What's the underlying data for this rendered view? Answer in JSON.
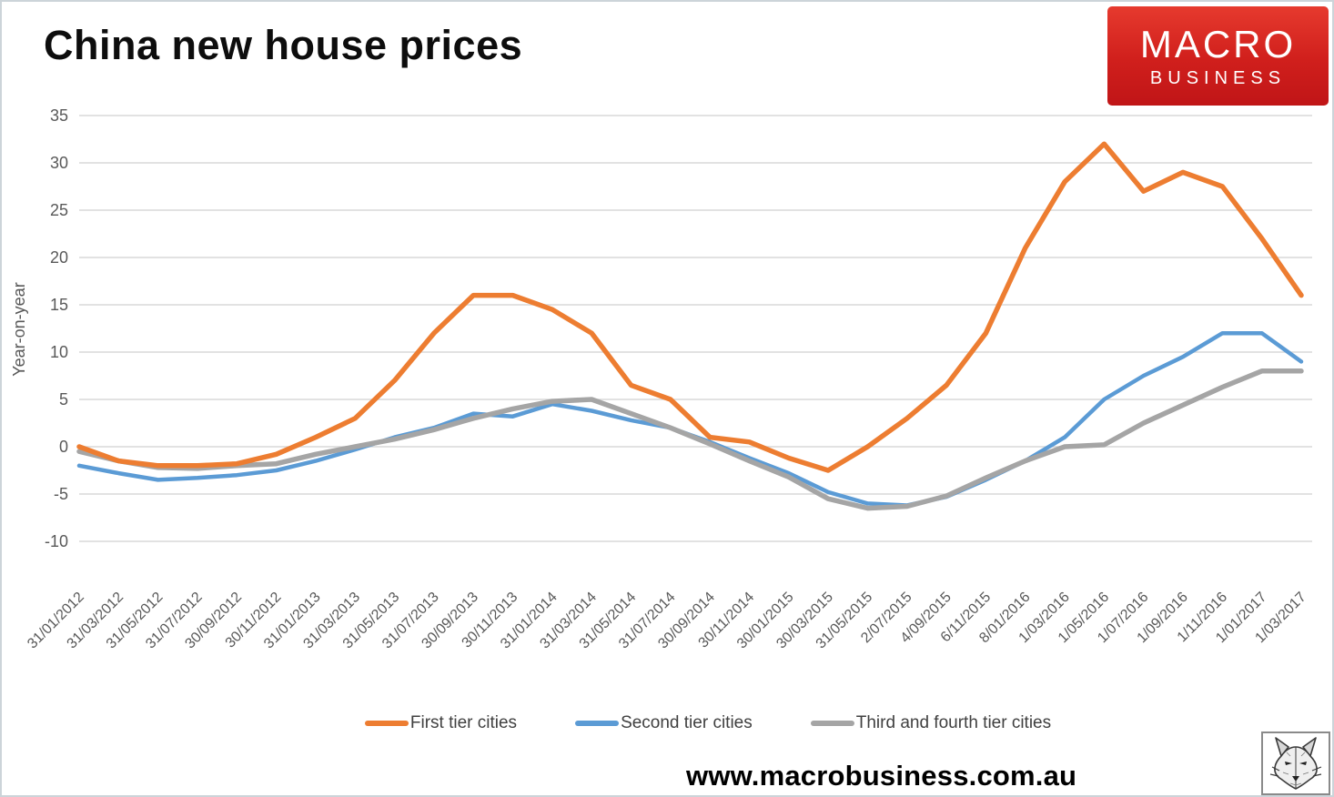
{
  "title": "China new house prices",
  "logo": {
    "line1": "MACRO",
    "line2": "BUSINESS",
    "background": "#d01f1c"
  },
  "watermark": "www.macrobusiness.com.au",
  "icons": {
    "wolf_logo": "wolf-head-logo"
  },
  "chart_data": {
    "type": "line",
    "title": "China new house prices",
    "xlabel": "",
    "ylabel": "Year-on-year",
    "ylim": [
      -10,
      35
    ],
    "ytick_step": 5,
    "grid": "horizontal",
    "legend_position": "bottom",
    "colors": {
      "grid": "#d9d9d9",
      "axis_text": "#595959"
    },
    "categories": [
      "31/01/2012",
      "31/03/2012",
      "31/05/2012",
      "31/07/2012",
      "30/09/2012",
      "30/11/2012",
      "31/01/2013",
      "31/03/2013",
      "31/05/2013",
      "31/07/2013",
      "30/09/2013",
      "30/11/2013",
      "31/01/2014",
      "31/03/2014",
      "31/05/2014",
      "31/07/2014",
      "30/09/2014",
      "30/11/2014",
      "30/01/2015",
      "30/03/2015",
      "31/05/2015",
      "2/07/2015",
      "4/09/2015",
      "6/11/2015",
      "8/01/2016",
      "1/03/2016",
      "1/05/2016",
      "1/07/2016",
      "1/09/2016",
      "1/11/2016",
      "1/01/2017",
      "1/03/2017"
    ],
    "series": [
      {
        "name": "First tier cities",
        "color": "#ED7D31",
        "values": [
          0,
          -1.5,
          -2,
          -2,
          -1.8,
          -0.8,
          1,
          3,
          7,
          12,
          16,
          16,
          14.5,
          12,
          6.5,
          5,
          1,
          0.5,
          -1.2,
          -2.5,
          0,
          3,
          6.5,
          12,
          21,
          28,
          32,
          27,
          29,
          27.5,
          22,
          16
        ]
      },
      {
        "name": "Second tier cities",
        "color": "#5B9BD5",
        "values": [
          -2,
          -2.8,
          -3.5,
          -3.3,
          -3,
          -2.5,
          -1.5,
          -0.3,
          1,
          2,
          3.5,
          3.2,
          4.5,
          3.8,
          2.8,
          2,
          0.5,
          -1.2,
          -2.8,
          -4.8,
          -6,
          -6.2,
          -5.3,
          -3.5,
          -1.5,
          1,
          5,
          7.5,
          9.5,
          12,
          12,
          9
        ]
      },
      {
        "name": "Third and fourth tier cities",
        "color": "#A5A5A5",
        "values": [
          -0.5,
          -1.5,
          -2.2,
          -2.3,
          -2,
          -1.8,
          -0.8,
          0,
          0.8,
          1.8,
          3,
          4,
          4.8,
          5,
          3.5,
          2,
          0.3,
          -1.5,
          -3.2,
          -5.5,
          -6.5,
          -6.3,
          -5.2,
          -3.3,
          -1.5,
          0,
          0.2,
          2.5,
          4.4,
          6.3,
          8,
          8
        ]
      }
    ]
  }
}
